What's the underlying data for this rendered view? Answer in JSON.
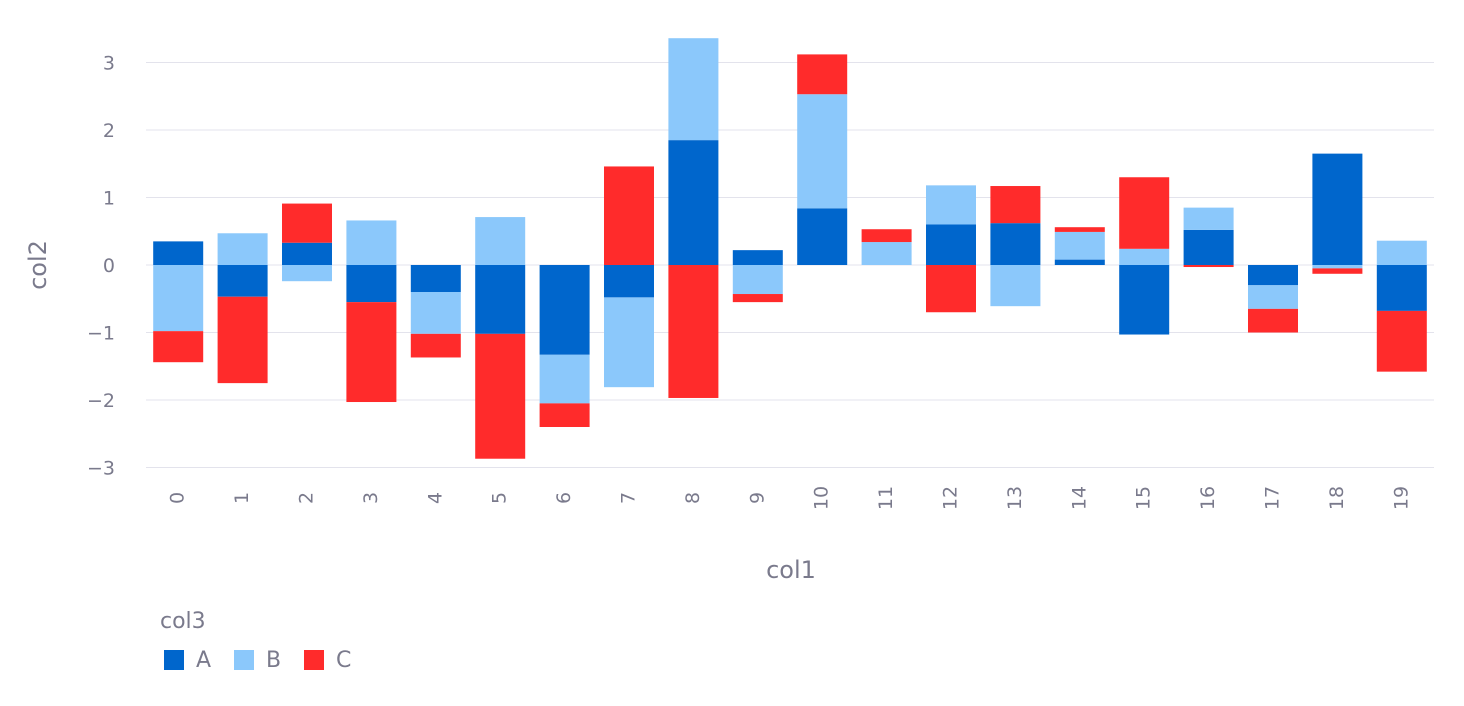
{
  "chart_data": {
    "type": "bar",
    "stacked": true,
    "categories": [
      "0",
      "1",
      "2",
      "3",
      "4",
      "5",
      "6",
      "7",
      "8",
      "9",
      "10",
      "11",
      "12",
      "13",
      "14",
      "15",
      "16",
      "17",
      "18",
      "19"
    ],
    "series": [
      {
        "name": "A",
        "color": "#0066cc",
        "values": [
          0.35,
          -0.47,
          0.33,
          -0.55,
          -0.4,
          -1.02,
          -1.33,
          -0.48,
          1.85,
          0.22,
          0.84,
          0.0,
          0.6,
          0.62,
          0.08,
          -1.03,
          0.52,
          -0.3,
          1.65,
          -0.68
        ]
      },
      {
        "name": "B",
        "color": "#8bc8fb",
        "values": [
          -0.98,
          0.47,
          -0.24,
          0.66,
          -0.62,
          0.71,
          -0.72,
          -1.33,
          1.51,
          -0.43,
          1.69,
          0.34,
          0.58,
          -0.61,
          0.41,
          0.24,
          0.33,
          -0.35,
          -0.05,
          0.36
        ]
      },
      {
        "name": "C",
        "color": "#ff2b2b",
        "values": [
          -0.46,
          -1.28,
          0.58,
          -1.48,
          -0.35,
          -1.85,
          -0.35,
          1.46,
          -1.97,
          -0.12,
          0.59,
          0.19,
          -0.7,
          0.55,
          0.07,
          1.06,
          -0.03,
          -0.35,
          -0.08,
          -0.9
        ]
      }
    ],
    "xlabel": "col1",
    "ylabel": "col2",
    "ylim": [
      -3.35,
      3.35
    ],
    "yticks": [
      3,
      2,
      1,
      0,
      -1,
      -2,
      -3
    ],
    "ytick_labels": [
      "3",
      "2",
      "1",
      "0",
      "−1",
      "−2",
      "−3"
    ],
    "legend_title": "col3",
    "legend_placement": "bottom-left",
    "grid": true
  }
}
